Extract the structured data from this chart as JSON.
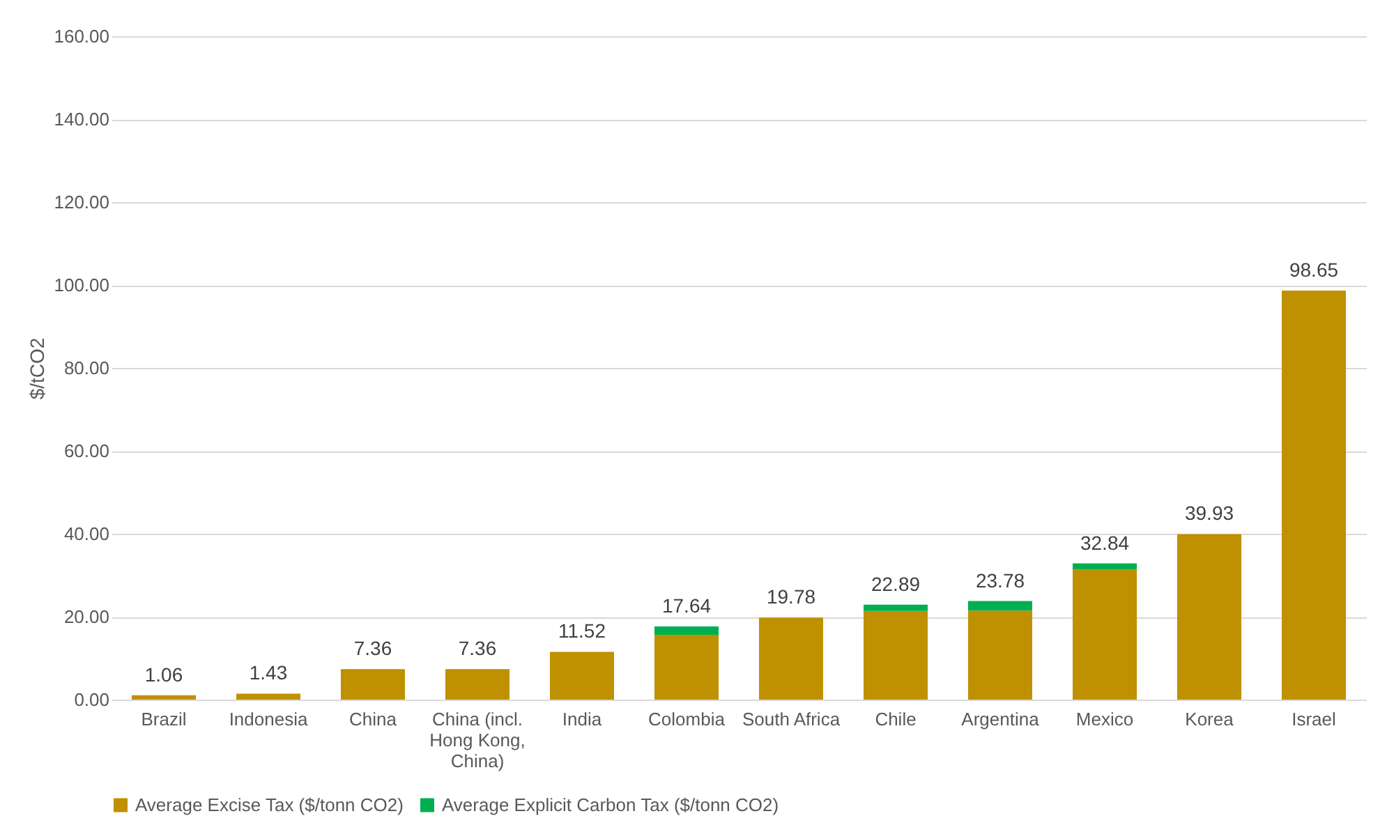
{
  "chart_data": {
    "type": "bar",
    "stacked": true,
    "ylabel": "$/tCO2",
    "categories": [
      "Brazil",
      "Indonesia",
      "China",
      "China (incl. Hong Kong, China)",
      "India",
      "Colombia",
      "South Africa",
      "Chile",
      "Argentina",
      "Mexico",
      "Korea",
      "Israel"
    ],
    "series": [
      {
        "name": "Average Excise Tax ($/tonn CO2)",
        "color": "#bf9000",
        "values": [
          1.06,
          1.43,
          7.36,
          7.36,
          11.52,
          15.64,
          19.78,
          21.39,
          21.48,
          31.34,
          39.93,
          98.65
        ]
      },
      {
        "name": "Average Explicit Carbon Tax ($/tonn CO2)",
        "color": "#00b050",
        "values": [
          0,
          0,
          0,
          0,
          0,
          2.0,
          0,
          1.5,
          2.3,
          1.5,
          0,
          0
        ]
      }
    ],
    "totals": [
      "1.06",
      "1.43",
      "7.36",
      "7.36",
      "11.52",
      "17.64",
      "19.78",
      "22.89",
      "23.78",
      "32.84",
      "39.93",
      "98.65"
    ],
    "ylim": [
      0,
      160
    ],
    "yticks": [
      {
        "value": 0,
        "label": "0.00"
      },
      {
        "value": 20,
        "label": "20.00"
      },
      {
        "value": 40,
        "label": "40.00"
      },
      {
        "value": 60,
        "label": "60.00"
      },
      {
        "value": 80,
        "label": "80.00"
      },
      {
        "value": 100,
        "label": "100.00"
      },
      {
        "value": 120,
        "label": "120.00"
      },
      {
        "value": 140,
        "label": "140.00"
      },
      {
        "value": 160,
        "label": "160.00"
      }
    ],
    "grid": "y",
    "legend": "bottom"
  }
}
